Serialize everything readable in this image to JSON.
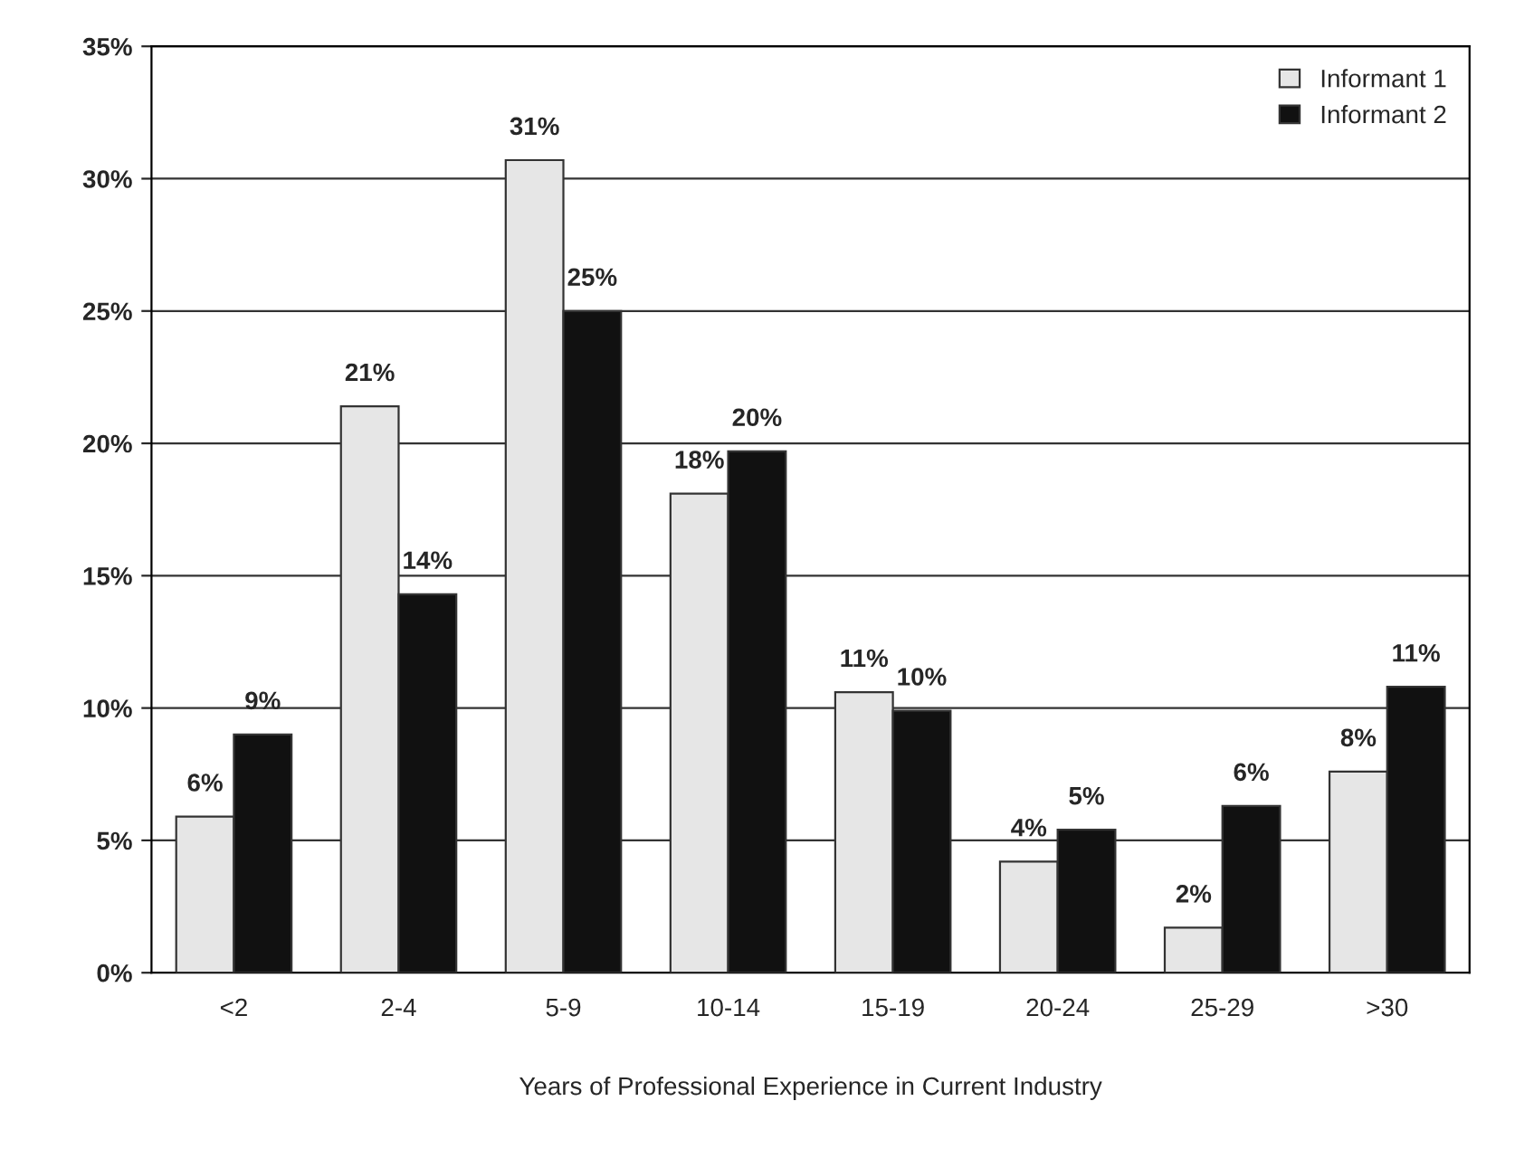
{
  "chart_data": {
    "type": "bar",
    "xlabel": "Years of Professional Experience in Current Industry",
    "categories": [
      "<2",
      "2-4",
      "5-9",
      "10-14",
      "15-19",
      "20-24",
      "25-29",
      ">30"
    ],
    "series": [
      {
        "name": "Informant 1",
        "color": "#e6e6e6",
        "values": [
          5.9,
          21.4,
          30.7,
          18.1,
          10.6,
          4.2,
          1.7,
          7.6
        ],
        "value_labels": [
          "6%",
          "21%",
          "31%",
          "18%",
          "11%",
          "4%",
          "2%",
          "8%"
        ]
      },
      {
        "name": "Informant 2",
        "color": "#111111",
        "values": [
          9.0,
          14.3,
          25.0,
          19.7,
          9.9,
          5.4,
          6.3,
          10.8
        ],
        "value_labels": [
          "9%",
          "14%",
          "25%",
          "20%",
          "10%",
          "5%",
          "6%",
          "11%"
        ]
      }
    ],
    "ylim": [
      0,
      35
    ],
    "yticks": [
      {
        "value": 0,
        "label": "0%"
      },
      {
        "value": 5,
        "label": "5%"
      },
      {
        "value": 10,
        "label": "10%"
      },
      {
        "value": 15,
        "label": "15%"
      },
      {
        "value": 20,
        "label": "20%"
      },
      {
        "value": 25,
        "label": "25%"
      },
      {
        "value": 30,
        "label": "30%"
      },
      {
        "value": 35,
        "label": "35%"
      }
    ],
    "grid": "y",
    "legend": "top right"
  }
}
